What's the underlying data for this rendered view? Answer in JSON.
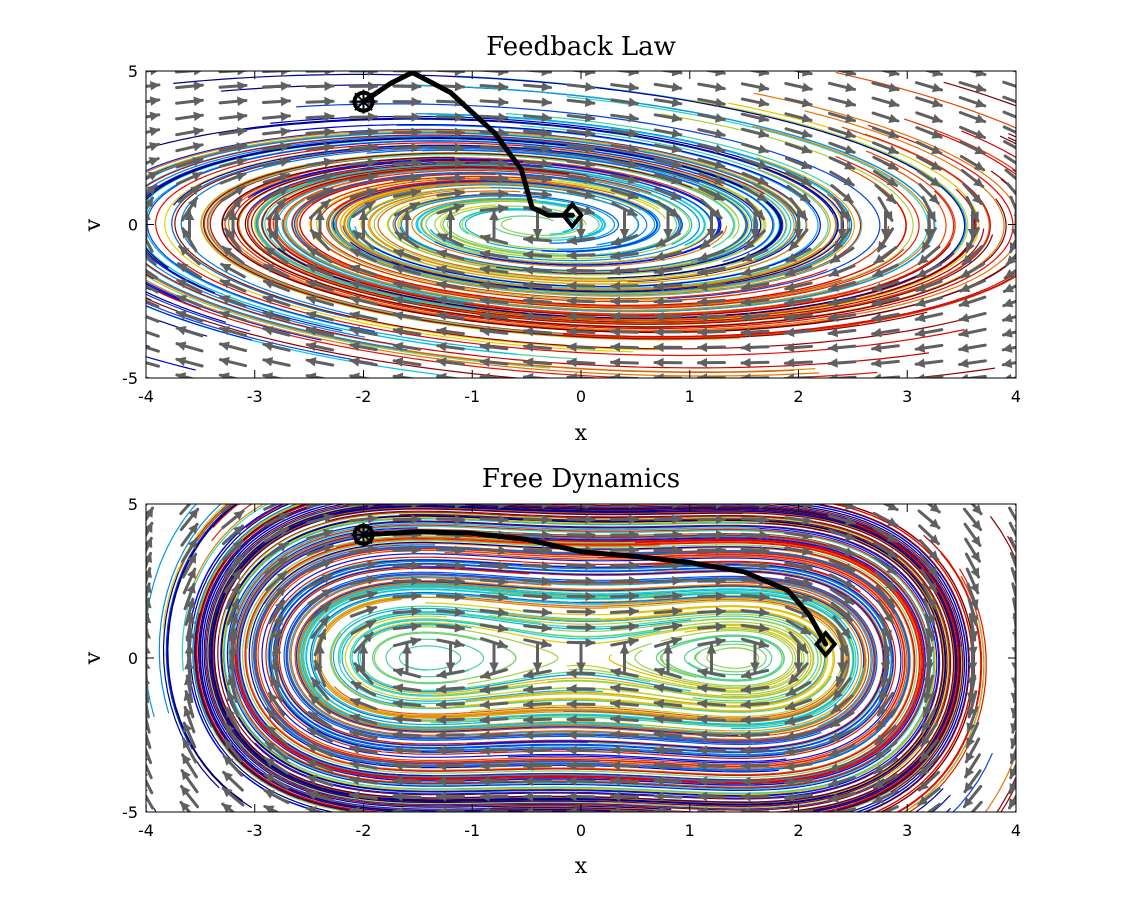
{
  "chart_data": [
    {
      "type": "line",
      "title": "Feedback Law",
      "xlabel": "x",
      "ylabel": "v",
      "xlim": [
        -4,
        4
      ],
      "ylim": [
        -5,
        5
      ],
      "xticks": [
        "-4",
        "-3",
        "-2",
        "-1",
        "0",
        "1",
        "2",
        "3",
        "4"
      ],
      "yticks": [
        "-5",
        "0",
        "5"
      ],
      "grid": false,
      "series": [
        {
          "role": "highlighted trajectory",
          "x": [
            -2.0,
            -1.75,
            -1.55,
            -1.2,
            -0.8,
            -0.55,
            -0.45,
            -0.3,
            -0.08
          ],
          "y": [
            4.0,
            4.6,
            4.95,
            4.3,
            3.0,
            1.8,
            0.55,
            0.3,
            0.3
          ]
        }
      ],
      "start_marker": {
        "shape": "circle",
        "x": -2.0,
        "y": 4.0
      },
      "end_marker": {
        "shape": "diamond",
        "x": -0.08,
        "y": 0.3
      },
      "colors": {
        "trajectory": "#000000",
        "quiver": "#606060"
      }
    },
    {
      "type": "line",
      "title": "Free Dynamics",
      "xlabel": "x",
      "ylabel": "v",
      "xlim": [
        -4,
        4
      ],
      "ylim": [
        -5,
        5
      ],
      "xticks": [
        "-4",
        "-3",
        "-2",
        "-1",
        "0",
        "1",
        "2",
        "3",
        "4"
      ],
      "yticks": [
        "-5",
        "0",
        "5"
      ],
      "grid": false,
      "series": [
        {
          "role": "highlighted trajectory",
          "x": [
            -2.0,
            -1.5,
            -1.0,
            -0.5,
            0.0,
            0.5,
            1.0,
            1.5,
            1.9,
            2.1,
            2.25
          ],
          "y": [
            4.0,
            4.1,
            4.05,
            3.85,
            3.45,
            3.3,
            3.1,
            2.8,
            2.2,
            1.4,
            0.45
          ]
        }
      ],
      "start_marker": {
        "shape": "circle",
        "x": -2.0,
        "y": 4.0
      },
      "end_marker": {
        "shape": "diamond",
        "x": 2.25,
        "y": 0.45
      },
      "colors": {
        "trajectory": "#000000",
        "quiver": "#606060"
      }
    }
  ]
}
